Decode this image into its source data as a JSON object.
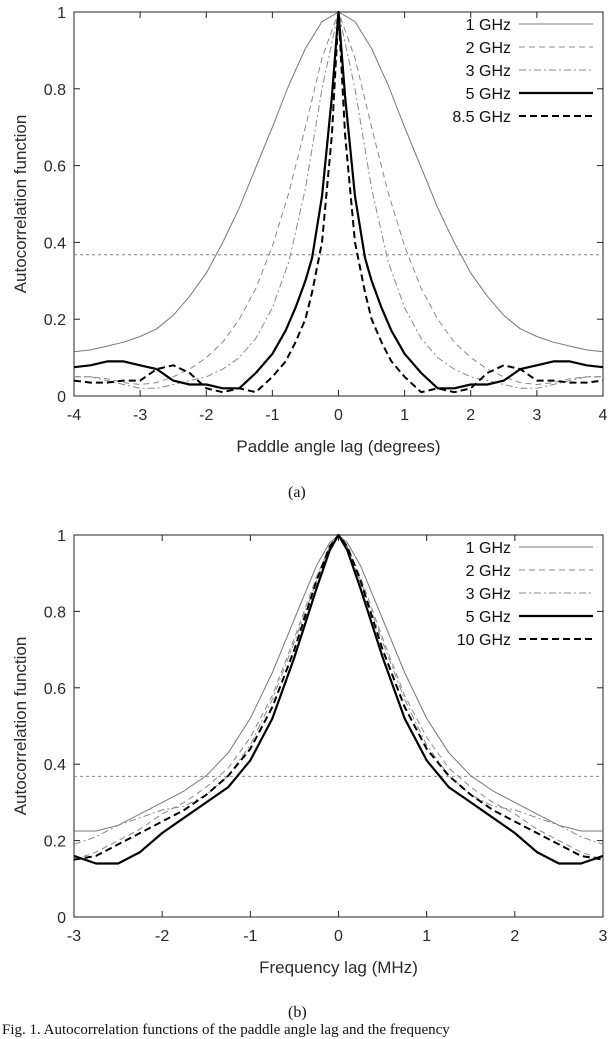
{
  "chart_data": [
    {
      "type": "line",
      "panel_label": "(a)",
      "xlabel": "Paddle angle lag (degrees)",
      "ylabel": "Autocorrelation function",
      "xlim": [
        -4,
        4
      ],
      "ylim": [
        0,
        1
      ],
      "xticks": [
        "-4",
        "-3",
        "-2",
        "-1",
        "0",
        "1",
        "2",
        "3",
        "4"
      ],
      "yticks": [
        "0",
        "0.2",
        "0.4",
        "0.6",
        "0.8",
        "1"
      ],
      "legend_position": "top-right",
      "reference_line": 0.368,
      "series": [
        {
          "name": "1 GHz",
          "x": [
            0,
            0.25,
            0.5,
            0.75,
            1,
            1.25,
            1.5,
            1.75,
            2,
            2.25,
            2.5,
            2.75,
            3,
            3.25,
            3.5,
            3.75,
            4
          ],
          "y": [
            1.0,
            0.975,
            0.905,
            0.81,
            0.7,
            0.595,
            0.49,
            0.4,
            0.32,
            0.26,
            0.21,
            0.175,
            0.155,
            0.14,
            0.13,
            0.12,
            0.115
          ]
        },
        {
          "name": "2 GHz",
          "x": [
            0,
            0.25,
            0.5,
            0.75,
            1,
            1.25,
            1.5,
            1.75,
            2,
            2.25,
            2.5,
            2.75,
            3,
            3.25,
            3.5,
            3.75,
            4
          ],
          "y": [
            1.0,
            0.88,
            0.7,
            0.53,
            0.39,
            0.28,
            0.2,
            0.14,
            0.1,
            0.07,
            0.05,
            0.035,
            0.03,
            0.035,
            0.045,
            0.05,
            0.05
          ]
        },
        {
          "name": "3 GHz",
          "x": [
            0,
            0.25,
            0.5,
            0.75,
            1,
            1.25,
            1.5,
            1.75,
            2,
            2.25,
            2.5,
            2.75,
            3,
            3.25,
            3.5,
            3.75,
            4
          ],
          "y": [
            1.0,
            0.8,
            0.54,
            0.35,
            0.23,
            0.15,
            0.1,
            0.07,
            0.05,
            0.04,
            0.03,
            0.02,
            0.02,
            0.03,
            0.04,
            0.05,
            0.05
          ]
        },
        {
          "name": "5 GHz",
          "x": [
            0,
            0.1,
            0.25,
            0.4,
            0.5,
            0.65,
            0.8,
            1,
            1.25,
            1.5,
            1.75,
            2,
            2.25,
            2.5,
            2.75,
            3,
            3.25,
            3.5,
            3.75,
            4
          ],
          "y": [
            1.0,
            0.78,
            0.52,
            0.36,
            0.3,
            0.23,
            0.17,
            0.11,
            0.06,
            0.02,
            0.02,
            0.03,
            0.03,
            0.04,
            0.07,
            0.08,
            0.09,
            0.09,
            0.08,
            0.075
          ]
        },
        {
          "name": "8.5 GHz",
          "x": [
            0,
            0.1,
            0.25,
            0.4,
            0.5,
            0.65,
            0.8,
            1,
            1.25,
            1.5,
            1.75,
            2,
            2.25,
            2.5,
            2.75,
            3,
            3.25,
            3.5,
            3.75,
            4
          ],
          "y": [
            1.0,
            0.68,
            0.4,
            0.27,
            0.2,
            0.14,
            0.09,
            0.05,
            0.01,
            0.02,
            0.01,
            0.02,
            0.06,
            0.08,
            0.07,
            0.04,
            0.04,
            0.035,
            0.035,
            0.04
          ]
        }
      ]
    },
    {
      "type": "line",
      "panel_label": "(b)",
      "xlabel": "Frequency lag (MHz)",
      "ylabel": "Autocorrelation function",
      "xlim": [
        -3,
        3
      ],
      "ylim": [
        0,
        1
      ],
      "xticks": [
        "-3",
        "-2",
        "-1",
        "0",
        "1",
        "2",
        "3"
      ],
      "yticks": [
        "0",
        "0.2",
        "0.4",
        "0.6",
        "0.8",
        "1"
      ],
      "legend_position": "top-right",
      "reference_line": 0.368,
      "series": [
        {
          "name": "1 GHz",
          "x": [
            0,
            0.1,
            0.25,
            0.5,
            0.75,
            1,
            1.25,
            1.5,
            1.75,
            2,
            2.25,
            2.5,
            2.75,
            3
          ],
          "y": [
            1.0,
            0.98,
            0.92,
            0.78,
            0.64,
            0.52,
            0.43,
            0.37,
            0.33,
            0.3,
            0.27,
            0.24,
            0.225,
            0.225
          ]
        },
        {
          "name": "2 GHz",
          "x": [
            0,
            0.1,
            0.25,
            0.5,
            0.75,
            1,
            1.25,
            1.5,
            1.75,
            2,
            2.25,
            2.5,
            2.75,
            3
          ],
          "y": [
            1.0,
            0.97,
            0.89,
            0.73,
            0.58,
            0.47,
            0.39,
            0.34,
            0.3,
            0.27,
            0.23,
            0.2,
            0.17,
            0.15
          ]
        },
        {
          "name": "3 GHz",
          "x": [
            0,
            0.1,
            0.25,
            0.5,
            0.75,
            1,
            1.25,
            1.5,
            1.75,
            2,
            2.25,
            2.5,
            2.75,
            3
          ],
          "y": [
            1.0,
            0.97,
            0.88,
            0.72,
            0.57,
            0.45,
            0.37,
            0.32,
            0.29,
            0.28,
            0.26,
            0.24,
            0.21,
            0.19
          ]
        },
        {
          "name": "5 GHz",
          "x": [
            0,
            0.1,
            0.25,
            0.5,
            0.75,
            1,
            1.25,
            1.5,
            1.75,
            2,
            2.25,
            2.5,
            2.75,
            3
          ],
          "y": [
            1.0,
            0.96,
            0.86,
            0.68,
            0.52,
            0.41,
            0.34,
            0.3,
            0.26,
            0.22,
            0.17,
            0.14,
            0.14,
            0.16
          ]
        },
        {
          "name": "10 GHz",
          "x": [
            0,
            0.1,
            0.25,
            0.5,
            0.75,
            1,
            1.25,
            1.5,
            1.75,
            2,
            2.25,
            2.5,
            2.75,
            3
          ],
          "y": [
            1.0,
            0.97,
            0.88,
            0.7,
            0.55,
            0.44,
            0.37,
            0.32,
            0.28,
            0.25,
            0.22,
            0.19,
            0.16,
            0.15
          ]
        }
      ]
    }
  ],
  "caption": "Fig. 1.  Autocorrelation functions of the paddle angle lag and the frequency"
}
